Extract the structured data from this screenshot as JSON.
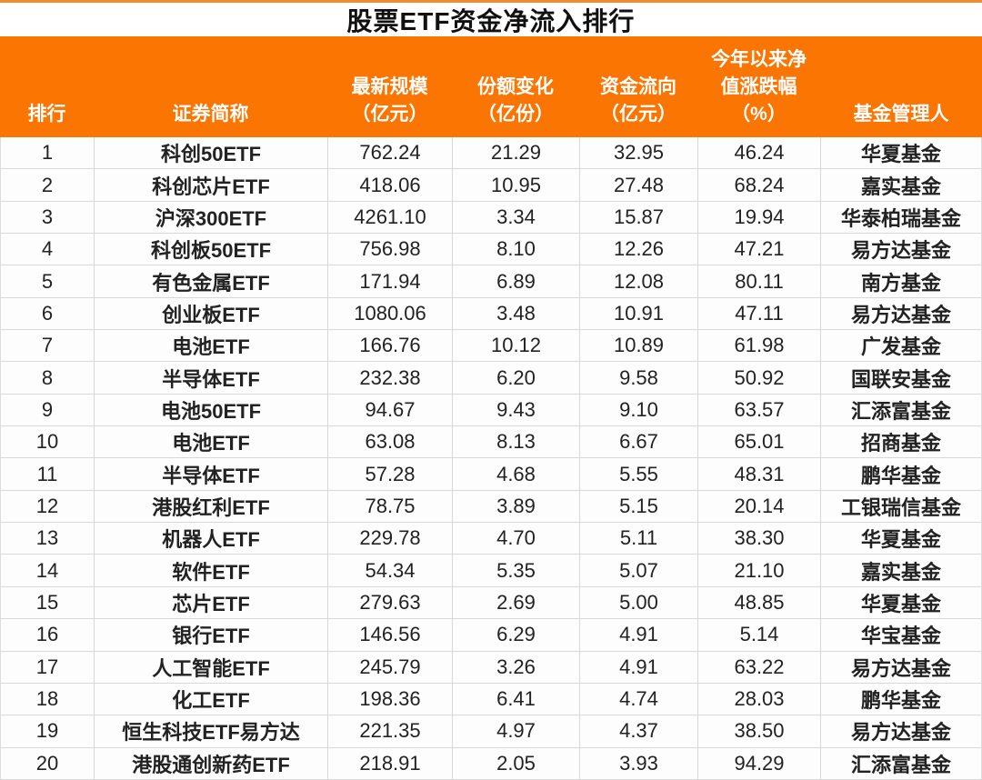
{
  "title": "股票ETF资金净流入排行",
  "colors": {
    "header_bg": "#fb7503",
    "top_edge_line": "#f08c2e",
    "grid_border": "#d8d8d8",
    "title_text": "#111111",
    "header_text": "#ffffff",
    "cell_text": "#222222"
  },
  "header": {
    "columns": [
      {
        "key": "rank",
        "lines": [
          "排行"
        ]
      },
      {
        "key": "name",
        "lines": [
          "证券简称"
        ]
      },
      {
        "key": "scale",
        "lines": [
          "最新规模",
          "（亿元）"
        ]
      },
      {
        "key": "share-change",
        "lines": [
          "份额变化",
          "（亿份）"
        ]
      },
      {
        "key": "flow",
        "lines": [
          "资金流向",
          "（亿元）"
        ]
      },
      {
        "key": "ytd-change",
        "lines": [
          "今年以来净",
          "值涨跌幅",
          "（%）"
        ]
      },
      {
        "key": "manager",
        "lines": [
          "基金管理人"
        ]
      }
    ]
  },
  "chart_data": {
    "type": "table",
    "title": "股票ETF资金净流入排行",
    "columns": [
      "排行",
      "证券简称",
      "最新规模（亿元）",
      "份额变化（亿份）",
      "资金流向（亿元）",
      "今年以来净值涨跌幅（%）",
      "基金管理人"
    ],
    "rows": [
      [
        "1",
        "科创50ETF",
        "762.24",
        "21.29",
        "32.95",
        "46.24",
        "华夏基金"
      ],
      [
        "2",
        "科创芯片ETF",
        "418.06",
        "10.95",
        "27.48",
        "68.24",
        "嘉实基金"
      ],
      [
        "3",
        "沪深300ETF",
        "4261.10",
        "3.34",
        "15.87",
        "19.94",
        "华泰柏瑞基金"
      ],
      [
        "4",
        "科创板50ETF",
        "756.98",
        "8.10",
        "12.26",
        "47.21",
        "易方达基金"
      ],
      [
        "5",
        "有色金属ETF",
        "171.94",
        "6.89",
        "12.08",
        "80.11",
        "南方基金"
      ],
      [
        "6",
        "创业板ETF",
        "1080.06",
        "3.48",
        "10.91",
        "47.11",
        "易方达基金"
      ],
      [
        "7",
        "电池ETF",
        "166.76",
        "10.12",
        "10.89",
        "61.98",
        "广发基金"
      ],
      [
        "8",
        "半导体ETF",
        "232.38",
        "6.20",
        "9.58",
        "50.92",
        "国联安基金"
      ],
      [
        "9",
        "电池50ETF",
        "94.67",
        "9.43",
        "9.10",
        "63.57",
        "汇添富基金"
      ],
      [
        "10",
        "电池ETF",
        "63.08",
        "8.13",
        "6.67",
        "65.01",
        "招商基金"
      ],
      [
        "11",
        "半导体ETF",
        "57.28",
        "4.68",
        "5.55",
        "48.31",
        "鹏华基金"
      ],
      [
        "12",
        "港股红利ETF",
        "78.75",
        "3.89",
        "5.15",
        "20.14",
        "工银瑞信基金"
      ],
      [
        "13",
        "机器人ETF",
        "229.78",
        "4.70",
        "5.11",
        "38.30",
        "华夏基金"
      ],
      [
        "14",
        "软件ETF",
        "54.34",
        "5.35",
        "5.07",
        "21.10",
        "嘉实基金"
      ],
      [
        "15",
        "芯片ETF",
        "279.63",
        "2.69",
        "5.00",
        "48.85",
        "华夏基金"
      ],
      [
        "16",
        "银行ETF",
        "146.56",
        "6.29",
        "4.91",
        "5.14",
        "华宝基金"
      ],
      [
        "17",
        "人工智能ETF",
        "245.79",
        "3.26",
        "4.91",
        "63.22",
        "易方达基金"
      ],
      [
        "18",
        "化工ETF",
        "198.36",
        "6.41",
        "4.74",
        "28.03",
        "鹏华基金"
      ],
      [
        "19",
        "恒生科技ETF易方达",
        "221.35",
        "4.97",
        "4.37",
        "38.50",
        "易方达基金"
      ],
      [
        "20",
        "港股通创新药ETF",
        "218.91",
        "2.05",
        "3.93",
        "94.29",
        "汇添富基金"
      ]
    ]
  }
}
